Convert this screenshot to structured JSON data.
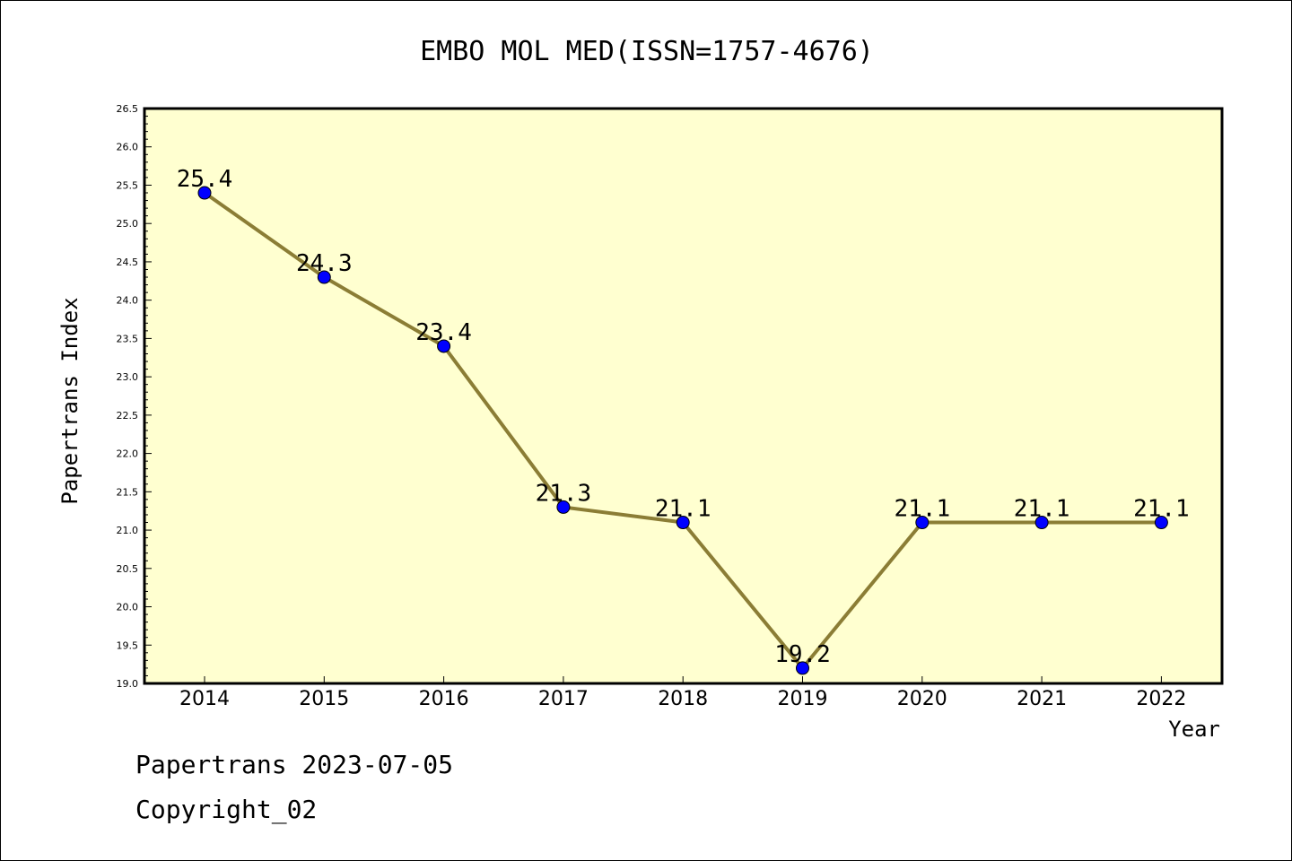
{
  "chart_data": {
    "type": "line",
    "title": "EMBO MOL MED(ISSN=1757-4676)",
    "xlabel": "Year",
    "ylabel": "Papertrans Index",
    "categories": [
      "2014",
      "2015",
      "2016",
      "2017",
      "2018",
      "2019",
      "2020",
      "2021",
      "2022"
    ],
    "series": [
      {
        "values": [
          25.4,
          24.3,
          23.4,
          21.3,
          21.1,
          19.2,
          21.1,
          21.1,
          21.1
        ],
        "data_labels": [
          "25.4",
          "24.3",
          "23.4",
          "21.3",
          "21.1",
          "19.2",
          "21.1",
          "21.1",
          "21.1"
        ]
      }
    ],
    "ylim": [
      19.0,
      26.5
    ],
    "ytick_labels": [
      "19.0",
      "19.5",
      "20.0",
      "20.5",
      "21.0",
      "21.5",
      "22.0",
      "22.5",
      "23.0",
      "23.5",
      "24.0",
      "24.5",
      "25.0",
      "25.5",
      "26.0",
      "26.5"
    ],
    "grid": false,
    "colors": {
      "plot_background": "#ffffd0",
      "line": "#8b7d35",
      "marker": "#0000ff"
    }
  },
  "footer": {
    "source": "Papertrans 2023-07-05",
    "copyright": "Copyright_02"
  }
}
